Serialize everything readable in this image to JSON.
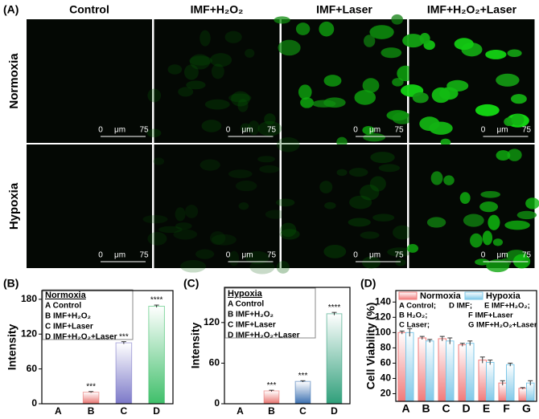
{
  "figure_a": {
    "label": "(A)",
    "columns": [
      "Control",
      "IMF+H₂O₂",
      "IMF+Laser",
      "IMF+H₂O₂+Laser"
    ],
    "rows": [
      "Normoxia",
      "Hypoxia"
    ],
    "scale_bar": {
      "start": "0",
      "unit": "μm",
      "end": "75"
    }
  },
  "chart_data": [
    {
      "type": "bar",
      "label": "(B)",
      "y_label": "Intensity",
      "legend_title": "Normoxia",
      "key": [
        "A Control",
        "B IMF+H₂O₂",
        "C IMF+Laser",
        "D IMF+H₂O₂+Laser"
      ],
      "categories": [
        "A",
        "B",
        "C",
        "D"
      ],
      "values": [
        0,
        20,
        105,
        168
      ],
      "errors": [
        0,
        1,
        2,
        2
      ],
      "annotations": [
        null,
        "***",
        "***",
        "****"
      ],
      "colors": [
        "#e8736f",
        "#e8736f",
        "#7b78c8",
        "#3fbf6a"
      ],
      "ylim": [
        0,
        195
      ],
      "yticks": [
        0,
        60,
        120,
        180
      ]
    },
    {
      "type": "bar",
      "label": "(C)",
      "y_label": "Intensity",
      "legend_title": "Hypoxia",
      "key": [
        "A Control",
        "B IMF+H₂O₂",
        "C IMF+Laser",
        "D IMF+H₂O₂+Laser"
      ],
      "categories": [
        "A",
        "B",
        "C",
        "D"
      ],
      "values": [
        0,
        19,
        33,
        133
      ],
      "errors": [
        0,
        1,
        1,
        2
      ],
      "annotations": [
        null,
        "***",
        "***",
        "****"
      ],
      "colors": [
        "#e8736f",
        "#e8736f",
        "#3a6fb0",
        "#2f9f7a"
      ],
      "ylim": [
        0,
        172
      ],
      "yticks": [
        0,
        60,
        120
      ]
    },
    {
      "type": "grouped_bar",
      "label": "(D)",
      "y_label": "Cell Viability (%)",
      "key": [
        "A  Control;",
        "D  IMF;",
        "E IMF+H₂O₂;",
        "B  H₂O₂;",
        "F  IMF+Laser",
        "C  Laser;",
        "G  IMF+H₂O₂+Laser"
      ],
      "categories": [
        "A",
        "B",
        "C",
        "D",
        "E",
        "F",
        "G"
      ],
      "series": [
        {
          "name": "Normoxia",
          "color": "#f07a7a",
          "values": [
            100,
            93,
            92,
            84,
            64,
            34,
            27
          ],
          "errors": [
            2,
            2,
            3,
            2,
            4,
            3,
            1
          ]
        },
        {
          "name": "Hypoxia",
          "color": "#7ec8e8",
          "values": [
            100,
            89,
            89,
            86,
            61,
            58,
            34
          ],
          "errors": [
            5,
            2,
            4,
            3,
            3,
            2,
            3
          ]
        }
      ],
      "ylim": [
        10,
        155
      ],
      "yticks": [
        20,
        40,
        60,
        80,
        100,
        120,
        140
      ]
    }
  ]
}
